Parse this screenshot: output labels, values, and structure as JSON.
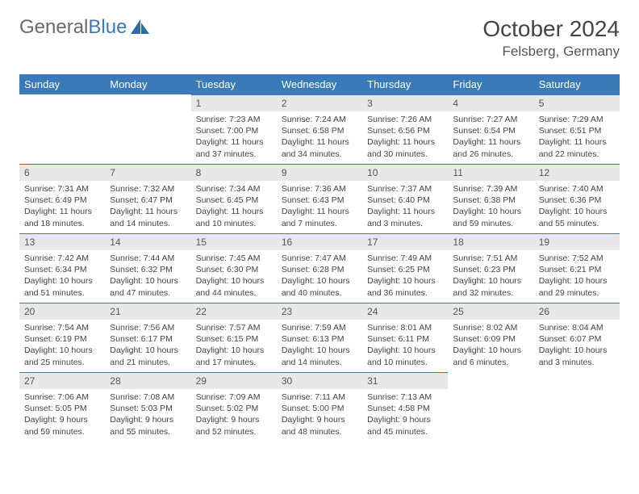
{
  "logo": {
    "word1": "General",
    "word2": "Blue"
  },
  "title": "October 2024",
  "location": "Felsberg, Germany",
  "colors": {
    "header_bg": "#3a7ab8",
    "header_text": "#ffffff",
    "daynum_bg": "#e8e8e8",
    "row_border": "#3a7ab8",
    "body_bg": "#ffffff",
    "text": "#444444",
    "logo_gray": "#6a6a6a",
    "logo_blue": "#3a7ab8"
  },
  "typography": {
    "title_fontsize": 28,
    "location_fontsize": 17,
    "dayheader_fontsize": 13,
    "daynum_fontsize": 12,
    "body_fontsize": 10.5
  },
  "day_headers": [
    "Sunday",
    "Monday",
    "Tuesday",
    "Wednesday",
    "Thursday",
    "Friday",
    "Saturday"
  ],
  "weeks": [
    [
      null,
      null,
      {
        "n": "1",
        "sunrise": "Sunrise: 7:23 AM",
        "sunset": "Sunset: 7:00 PM",
        "daylight": "Daylight: 11 hours and 37 minutes."
      },
      {
        "n": "2",
        "sunrise": "Sunrise: 7:24 AM",
        "sunset": "Sunset: 6:58 PM",
        "daylight": "Daylight: 11 hours and 34 minutes."
      },
      {
        "n": "3",
        "sunrise": "Sunrise: 7:26 AM",
        "sunset": "Sunset: 6:56 PM",
        "daylight": "Daylight: 11 hours and 30 minutes."
      },
      {
        "n": "4",
        "sunrise": "Sunrise: 7:27 AM",
        "sunset": "Sunset: 6:54 PM",
        "daylight": "Daylight: 11 hours and 26 minutes."
      },
      {
        "n": "5",
        "sunrise": "Sunrise: 7:29 AM",
        "sunset": "Sunset: 6:51 PM",
        "daylight": "Daylight: 11 hours and 22 minutes."
      }
    ],
    [
      {
        "n": "6",
        "sunrise": "Sunrise: 7:31 AM",
        "sunset": "Sunset: 6:49 PM",
        "daylight": "Daylight: 11 hours and 18 minutes."
      },
      {
        "n": "7",
        "sunrise": "Sunrise: 7:32 AM",
        "sunset": "Sunset: 6:47 PM",
        "daylight": "Daylight: 11 hours and 14 minutes."
      },
      {
        "n": "8",
        "sunrise": "Sunrise: 7:34 AM",
        "sunset": "Sunset: 6:45 PM",
        "daylight": "Daylight: 11 hours and 10 minutes."
      },
      {
        "n": "9",
        "sunrise": "Sunrise: 7:36 AM",
        "sunset": "Sunset: 6:43 PM",
        "daylight": "Daylight: 11 hours and 7 minutes."
      },
      {
        "n": "10",
        "sunrise": "Sunrise: 7:37 AM",
        "sunset": "Sunset: 6:40 PM",
        "daylight": "Daylight: 11 hours and 3 minutes."
      },
      {
        "n": "11",
        "sunrise": "Sunrise: 7:39 AM",
        "sunset": "Sunset: 6:38 PM",
        "daylight": "Daylight: 10 hours and 59 minutes."
      },
      {
        "n": "12",
        "sunrise": "Sunrise: 7:40 AM",
        "sunset": "Sunset: 6:36 PM",
        "daylight": "Daylight: 10 hours and 55 minutes."
      }
    ],
    [
      {
        "n": "13",
        "sunrise": "Sunrise: 7:42 AM",
        "sunset": "Sunset: 6:34 PM",
        "daylight": "Daylight: 10 hours and 51 minutes."
      },
      {
        "n": "14",
        "sunrise": "Sunrise: 7:44 AM",
        "sunset": "Sunset: 6:32 PM",
        "daylight": "Daylight: 10 hours and 47 minutes."
      },
      {
        "n": "15",
        "sunrise": "Sunrise: 7:45 AM",
        "sunset": "Sunset: 6:30 PM",
        "daylight": "Daylight: 10 hours and 44 minutes."
      },
      {
        "n": "16",
        "sunrise": "Sunrise: 7:47 AM",
        "sunset": "Sunset: 6:28 PM",
        "daylight": "Daylight: 10 hours and 40 minutes."
      },
      {
        "n": "17",
        "sunrise": "Sunrise: 7:49 AM",
        "sunset": "Sunset: 6:25 PM",
        "daylight": "Daylight: 10 hours and 36 minutes."
      },
      {
        "n": "18",
        "sunrise": "Sunrise: 7:51 AM",
        "sunset": "Sunset: 6:23 PM",
        "daylight": "Daylight: 10 hours and 32 minutes."
      },
      {
        "n": "19",
        "sunrise": "Sunrise: 7:52 AM",
        "sunset": "Sunset: 6:21 PM",
        "daylight": "Daylight: 10 hours and 29 minutes."
      }
    ],
    [
      {
        "n": "20",
        "sunrise": "Sunrise: 7:54 AM",
        "sunset": "Sunset: 6:19 PM",
        "daylight": "Daylight: 10 hours and 25 minutes."
      },
      {
        "n": "21",
        "sunrise": "Sunrise: 7:56 AM",
        "sunset": "Sunset: 6:17 PM",
        "daylight": "Daylight: 10 hours and 21 minutes."
      },
      {
        "n": "22",
        "sunrise": "Sunrise: 7:57 AM",
        "sunset": "Sunset: 6:15 PM",
        "daylight": "Daylight: 10 hours and 17 minutes."
      },
      {
        "n": "23",
        "sunrise": "Sunrise: 7:59 AM",
        "sunset": "Sunset: 6:13 PM",
        "daylight": "Daylight: 10 hours and 14 minutes."
      },
      {
        "n": "24",
        "sunrise": "Sunrise: 8:01 AM",
        "sunset": "Sunset: 6:11 PM",
        "daylight": "Daylight: 10 hours and 10 minutes."
      },
      {
        "n": "25",
        "sunrise": "Sunrise: 8:02 AM",
        "sunset": "Sunset: 6:09 PM",
        "daylight": "Daylight: 10 hours and 6 minutes."
      },
      {
        "n": "26",
        "sunrise": "Sunrise: 8:04 AM",
        "sunset": "Sunset: 6:07 PM",
        "daylight": "Daylight: 10 hours and 3 minutes."
      }
    ],
    [
      {
        "n": "27",
        "sunrise": "Sunrise: 7:06 AM",
        "sunset": "Sunset: 5:05 PM",
        "daylight": "Daylight: 9 hours and 59 minutes."
      },
      {
        "n": "28",
        "sunrise": "Sunrise: 7:08 AM",
        "sunset": "Sunset: 5:03 PM",
        "daylight": "Daylight: 9 hours and 55 minutes."
      },
      {
        "n": "29",
        "sunrise": "Sunrise: 7:09 AM",
        "sunset": "Sunset: 5:02 PM",
        "daylight": "Daylight: 9 hours and 52 minutes."
      },
      {
        "n": "30",
        "sunrise": "Sunrise: 7:11 AM",
        "sunset": "Sunset: 5:00 PM",
        "daylight": "Daylight: 9 hours and 48 minutes."
      },
      {
        "n": "31",
        "sunrise": "Sunrise: 7:13 AM",
        "sunset": "Sunset: 4:58 PM",
        "daylight": "Daylight: 9 hours and 45 minutes."
      },
      null,
      null
    ]
  ]
}
